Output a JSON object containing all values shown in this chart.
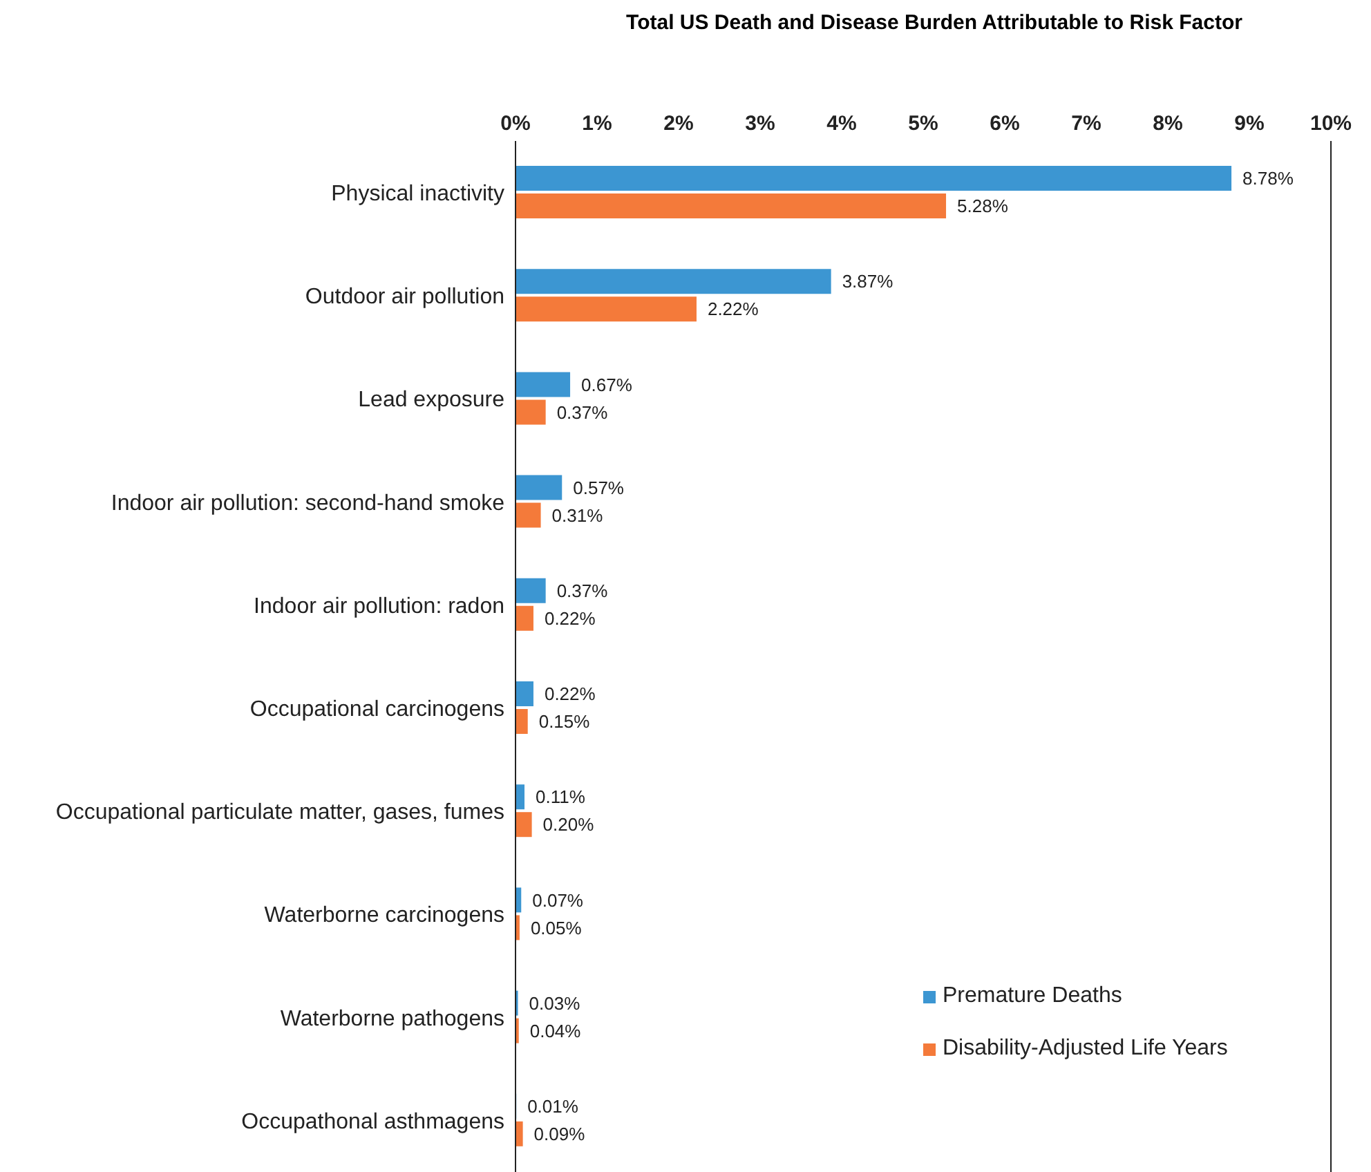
{
  "chart_data": {
    "type": "bar",
    "orientation": "horizontal",
    "title": "Total US Death and Disease Burden Attributable to Risk Factor",
    "categories": [
      "Physical inactivity",
      "Outdoor air pollution",
      "Lead exposure",
      "Indoor air pollution: second-hand smoke",
      "Indoor air pollution: radon",
      "Occupational carcinogens",
      "Occupational particulate matter, gases, fumes",
      "Waterborne carcinogens",
      "Waterborne pathogens",
      "Occupathonal asthmagens"
    ],
    "series": [
      {
        "name": "Premature Deaths",
        "color": "#3c96d2",
        "values": [
          8.78,
          3.87,
          0.67,
          0.57,
          0.37,
          0.22,
          0.11,
          0.07,
          0.03,
          0.01
        ],
        "value_labels": [
          "8.78%",
          "3.87%",
          "0.67%",
          "0.57%",
          "0.37%",
          "0.22%",
          "0.11%",
          "0.07%",
          "0.03%",
          "0.01%"
        ]
      },
      {
        "name": "Disability-Adjusted Life Years",
        "color": "#f47a3a",
        "values": [
          5.28,
          2.22,
          0.37,
          0.31,
          0.22,
          0.15,
          0.2,
          0.05,
          0.04,
          0.09
        ],
        "value_labels": [
          "5.28%",
          "2.22%",
          "0.37%",
          "0.31%",
          "0.22%",
          "0.15%",
          "0.20%",
          "0.05%",
          "0.04%",
          "0.09%"
        ]
      }
    ],
    "xlim": [
      0,
      10
    ],
    "xticks": [
      {
        "value": 0,
        "label": "0%"
      },
      {
        "value": 1,
        "label": "1%"
      },
      {
        "value": 2,
        "label": "2%"
      },
      {
        "value": 3,
        "label": "3%"
      },
      {
        "value": 4,
        "label": "4%"
      },
      {
        "value": 5,
        "label": "5%"
      },
      {
        "value": 6,
        "label": "6%"
      },
      {
        "value": 7,
        "label": "7%"
      },
      {
        "value": 8,
        "label": "8%"
      },
      {
        "value": 9,
        "label": "9%"
      },
      {
        "value": 10,
        "label": "10%"
      }
    ],
    "grid": false,
    "legend": "bottom right"
  }
}
